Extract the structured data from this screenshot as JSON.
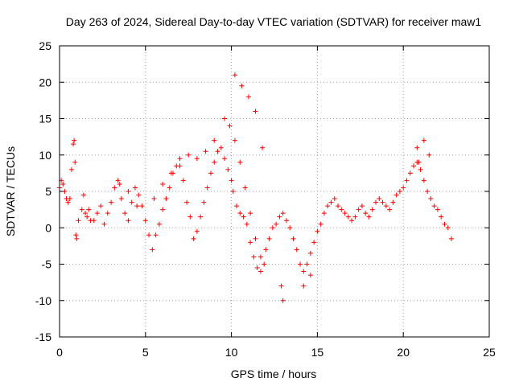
{
  "chart_data": {
    "type": "scatter",
    "title": "Day 263 of 2024, Sidereal Day-to-day VTEC variation (SDTVAR) for receiver maw1",
    "xlabel": "GPS time / hours",
    "ylabel": "SDTVAR / TECUs",
    "xlim": [
      0,
      25
    ],
    "ylim": [
      -15,
      25
    ],
    "xticks": [
      "0",
      "5",
      "10",
      "15",
      "20",
      "25"
    ],
    "yticks": [
      "-15",
      "-10",
      "-5",
      "0",
      "5",
      "10",
      "15",
      "20",
      "25"
    ],
    "grid": true,
    "marker": "+",
    "series": [
      {
        "name": "SDTVAR",
        "color": "#ff0000",
        "x": [
          0.0,
          0.1,
          0.2,
          0.3,
          0.4,
          0.5,
          0.6,
          0.7,
          0.8,
          0.85,
          0.9,
          0.95,
          1.0,
          1.1,
          1.3,
          1.4,
          1.5,
          1.6,
          1.7,
          1.8,
          2.0,
          2.2,
          2.4,
          2.6,
          2.8,
          3.0,
          3.2,
          3.4,
          3.5,
          3.6,
          3.8,
          4.0,
          4.2,
          4.4,
          4.6,
          4.8,
          5.0,
          5.2,
          5.4,
          5.6,
          5.8,
          6.0,
          6.2,
          6.4,
          6.6,
          6.8,
          7.0,
          7.2,
          7.4,
          7.6,
          7.8,
          8.0,
          8.2,
          8.4,
          8.6,
          8.8,
          9.0,
          9.2,
          9.4,
          9.6,
          9.8,
          10.0,
          10.1,
          10.3,
          10.5,
          10.7,
          10.9,
          11.1,
          11.3,
          11.5,
          11.7,
          11.9,
          12.0,
          12.2,
          12.4,
          12.6,
          12.8,
          13.0,
          13.2,
          13.4,
          13.6,
          13.8,
          14.0,
          14.2,
          14.4,
          14.6,
          14.8,
          15.0,
          15.2,
          15.4,
          15.6,
          15.8,
          16.0,
          16.2,
          16.4,
          16.6,
          16.8,
          17.0,
          17.2,
          17.4,
          17.6,
          17.8,
          18.0,
          18.2,
          18.4,
          18.6,
          18.8,
          19.0,
          19.2,
          19.4,
          19.6,
          19.8,
          20.0,
          20.2,
          20.4,
          20.6,
          20.8,
          21.0,
          21.2,
          21.4,
          21.6,
          21.8,
          22.0,
          22.2,
          22.4,
          22.6,
          22.8,
          10.2,
          10.6,
          11.0,
          11.4,
          11.8,
          9.6,
          9.9,
          10.2,
          10.5,
          10.8,
          11.1,
          11.4,
          11.7,
          9.0,
          8.5,
          8.0,
          7.5,
          7.0,
          6.5,
          6.0,
          5.5,
          4.5,
          4.0,
          12.9,
          13.0,
          14.2,
          14.6,
          20.8,
          20.9,
          21.2,
          21.5
        ],
        "y": [
          5.5,
          6.5,
          6.0,
          5.0,
          4.0,
          3.5,
          4.0,
          8.0,
          11.5,
          12.0,
          9.0,
          -1.0,
          -1.5,
          1.0,
          2.5,
          4.5,
          2.0,
          1.5,
          2.5,
          1.0,
          1.0,
          2.0,
          3.0,
          0.5,
          2.0,
          3.5,
          5.5,
          6.5,
          6.0,
          4.0,
          2.0,
          1.0,
          3.5,
          5.5,
          4.5,
          3.0,
          1.0,
          -1.0,
          -3.0,
          -1.0,
          0.5,
          2.5,
          4.0,
          5.5,
          7.5,
          8.5,
          9.5,
          6.5,
          3.5,
          1.5,
          -1.5,
          -0.5,
          1.5,
          3.5,
          5.5,
          7.5,
          9.0,
          10.5,
          11.0,
          9.5,
          8.0,
          6.5,
          5.0,
          3.0,
          2.0,
          1.5,
          0.5,
          -2.0,
          -4.0,
          -5.5,
          -6.0,
          -5.0,
          -3.0,
          -1.5,
          0.0,
          0.5,
          1.5,
          2.0,
          1.0,
          0.0,
          -1.5,
          -3.0,
          -5.0,
          -6.0,
          -5.0,
          -3.5,
          -2.0,
          -0.5,
          0.5,
          2.0,
          3.0,
          3.5,
          4.0,
          3.0,
          2.5,
          2.0,
          1.5,
          1.0,
          1.5,
          2.5,
          3.0,
          2.0,
          1.5,
          2.5,
          3.5,
          4.0,
          3.5,
          3.0,
          2.5,
          3.5,
          4.5,
          5.0,
          5.5,
          6.5,
          7.5,
          8.5,
          9.0,
          8.0,
          6.5,
          5.0,
          4.0,
          3.0,
          2.5,
          1.5,
          0.5,
          0.0,
          -1.5,
          21.0,
          19.5,
          18.0,
          16.0,
          11.0,
          15.0,
          14.0,
          12.0,
          9.0,
          5.5,
          2.0,
          -1.5,
          -4.0,
          12.0,
          10.5,
          9.5,
          10.0,
          8.5,
          7.5,
          6.0,
          4.0,
          3.0,
          5.0,
          -8.0,
          -10.0,
          -8.0,
          -6.5,
          11.0,
          9.0,
          12.0,
          10.0
        ]
      }
    ]
  }
}
